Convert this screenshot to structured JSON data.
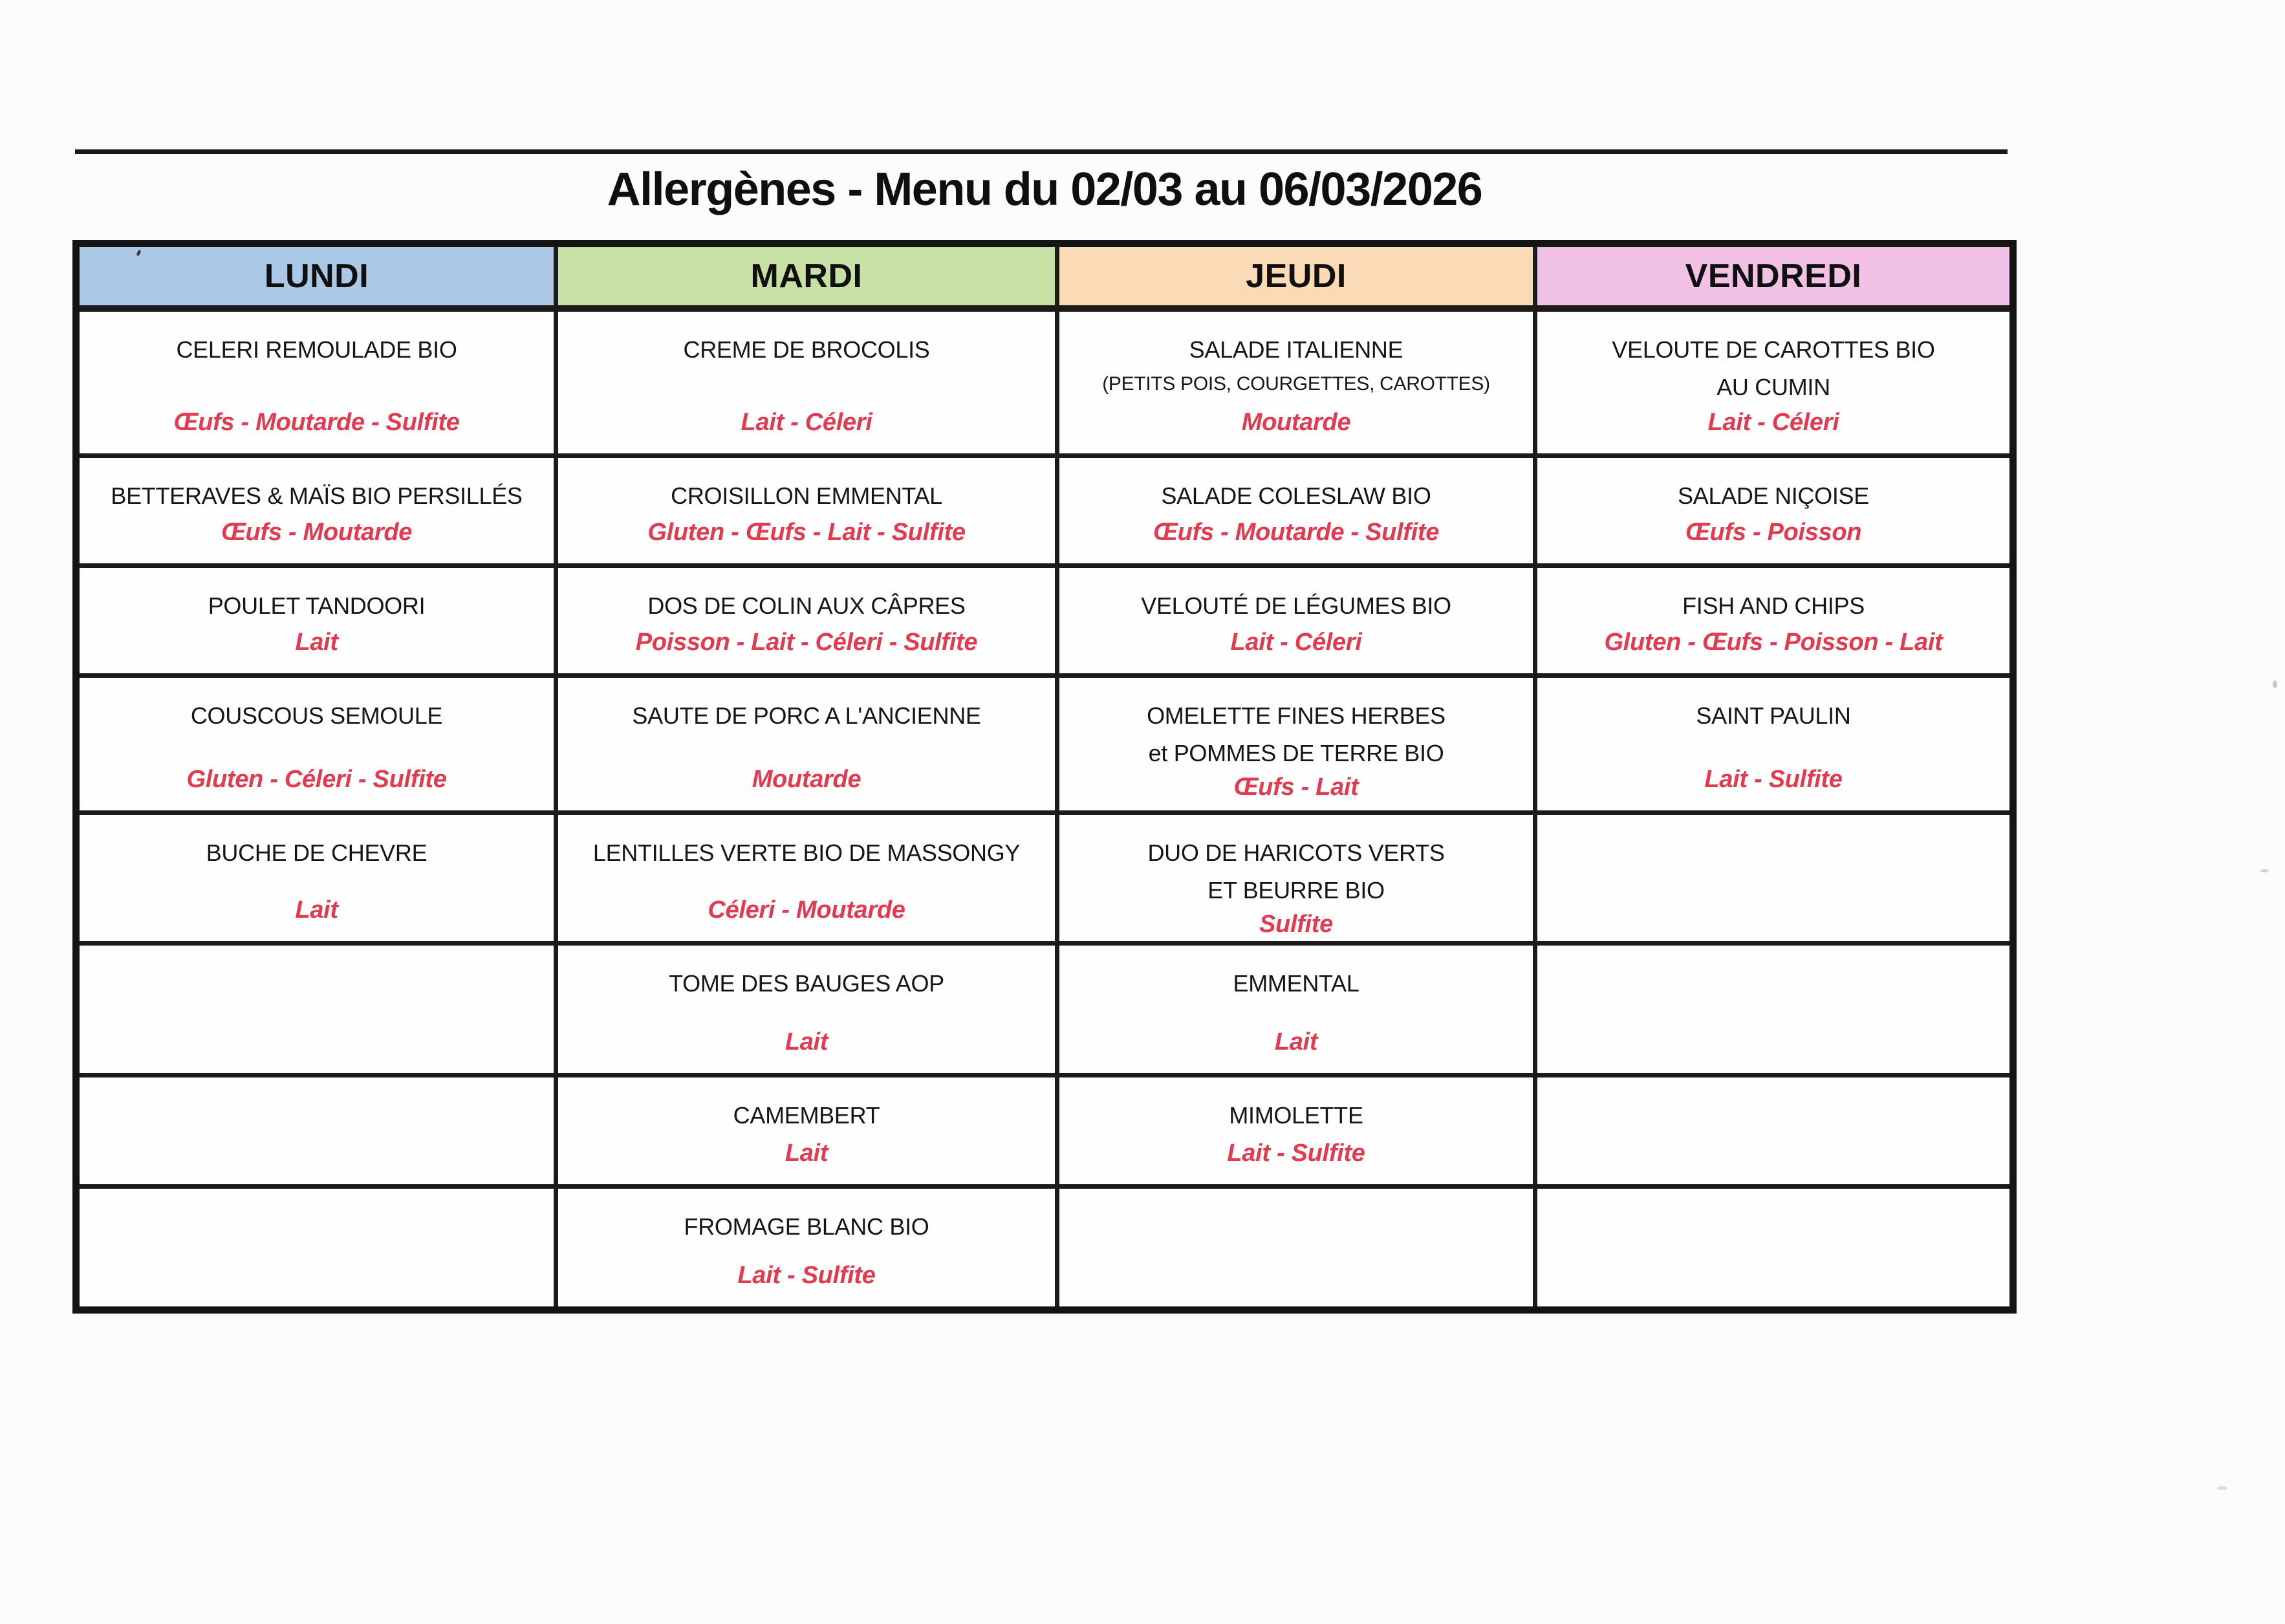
{
  "page_title": "Allergènes - Menu du 02/03 au 06/03/2026",
  "colors": {
    "allergen_red": "#e23a4e",
    "line_black": "#1b1b1b",
    "header_lundi_blue": "#abc8e6",
    "header_mardi_green": "#c7e0a5",
    "header_jeudi_peach": "#fadbb5",
    "header_vendredi_pink": "#f2c2e6"
  },
  "table": {
    "columns": [
      {
        "label": "LUNDI",
        "color": "#abc8e6",
        "cells": [
          {
            "dish": "CELERI REMOULADE BIO",
            "allergens": "Œufs - Moutarde - Sulfite"
          },
          {
            "dish": "BETTERAVES & MAÏS BIO PERSILLÉS",
            "allergens": "Œufs - Moutarde"
          },
          {
            "dish": "POULET TANDOORI",
            "allergens": "Lait"
          },
          {
            "dish": "COUSCOUS SEMOULE",
            "allergens": "Gluten - Céleri - Sulfite"
          },
          {
            "dish": "BUCHE DE CHEVRE",
            "allergens": "Lait"
          },
          {},
          {},
          {}
        ]
      },
      {
        "label": "MARDI",
        "color": "#c7e0a5",
        "cells": [
          {
            "dish": "CREME DE BROCOLIS",
            "allergens": "Lait - Céleri"
          },
          {
            "dish": "CROISILLON EMMENTAL",
            "allergens": "Gluten - Œufs - Lait - Sulfite"
          },
          {
            "dish": "DOS DE COLIN AUX CÂPRES",
            "allergens": "Poisson - Lait - Céleri - Sulfite"
          },
          {
            "dish": "SAUTE DE PORC A L'ANCIENNE",
            "allergens": "Moutarde"
          },
          {
            "dish": "LENTILLES VERTE BIO DE MASSONGY",
            "allergens": "Céleri - Moutarde"
          },
          {
            "dish": "TOME DES BAUGES AOP",
            "allergens": "Lait"
          },
          {
            "dish": "CAMEMBERT",
            "allergens": "Lait"
          },
          {
            "dish": "FROMAGE BLANC BIO",
            "allergens": "Lait - Sulfite"
          }
        ]
      },
      {
        "label": "JEUDI",
        "color": "#fadbb5",
        "cells": [
          {
            "dish": "SALADE ITALIENNE",
            "note": "(PETITS POIS, COURGETTES, CAROTTES)",
            "allergens": "Moutarde"
          },
          {
            "dish": "SALADE COLESLAW BIO",
            "allergens": "Œufs - Moutarde - Sulfite"
          },
          {
            "dish": "VELOUTÉ DE LÉGUMES BIO",
            "allergens": "Lait - Céleri"
          },
          {
            "dish": "OMELETTE FINES HERBES",
            "dish2": "et POMMES DE TERRE BIO",
            "allergens": "Œufs - Lait"
          },
          {
            "dish": "DUO DE HARICOTS VERTS",
            "dish2": "ET BEURRE BIO",
            "allergens": "Sulfite"
          },
          {
            "dish": "EMMENTAL",
            "allergens": "Lait"
          },
          {
            "dish": "MIMOLETTE",
            "allergens": "Lait - Sulfite"
          },
          {}
        ]
      },
      {
        "label": "VENDREDI",
        "color": "#f2c2e6",
        "cells": [
          {
            "dish": "VELOUTE DE CAROTTES BIO",
            "dish2": "AU CUMIN",
            "allergens": "Lait - Céleri"
          },
          {
            "dish": "SALADE NIÇOISE",
            "allergens": "Œufs - Poisson"
          },
          {
            "dish": "FISH AND CHIPS",
            "allergens": "Gluten - Œufs - Poisson - Lait"
          },
          {
            "dish": "SAINT PAULIN",
            "allergens": "Lait - Sulfite"
          },
          {},
          {},
          {},
          {}
        ]
      }
    ]
  }
}
